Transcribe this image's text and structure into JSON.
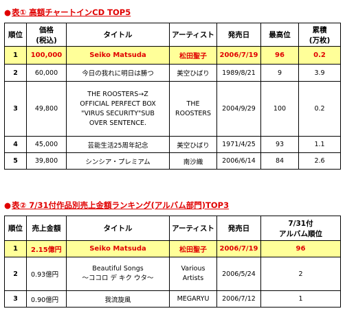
{
  "table1": {
    "title": "表① 高額チャートインCD TOP5",
    "headers": {
      "rank": "順位",
      "price": [
        "価格",
        "(税込)"
      ],
      "title": "タイトル",
      "artist": "アーティスト",
      "release": "発売日",
      "peak": "最高位",
      "total": [
        "累積",
        "(万枚)"
      ]
    },
    "rows": [
      {
        "rank": "1",
        "price": "100,000",
        "title": [
          "Seiko Matsuda"
        ],
        "artist": [
          "松田聖子"
        ],
        "release": "2006/7/19",
        "peak": "96",
        "total": "0.2",
        "highlight": true
      },
      {
        "rank": "2",
        "price": "60,000",
        "title": [
          "今日の我れに明日は勝つ"
        ],
        "artist": [
          "美空ひばり"
        ],
        "release": "1989/8/21",
        "peak": "9",
        "total": "3.9",
        "highlight": false
      },
      {
        "rank": "3",
        "price": "49,800",
        "title": [
          "THE ROOSTERS→Z",
          "OFFICIAL PERFECT BOX",
          "\"VIRUS SECURITY\"SUB",
          "OVER SENTENCE."
        ],
        "artist": [
          "THE",
          "ROOSTERS"
        ],
        "release": "2004/9/29",
        "peak": "100",
        "total": "0.2",
        "highlight": false
      },
      {
        "rank": "4",
        "price": "45,000",
        "title": [
          "芸能生活25周年記念"
        ],
        "artist": [
          "美空ひばり"
        ],
        "release": "1971/4/25",
        "peak": "93",
        "total": "1.1",
        "highlight": false
      },
      {
        "rank": "5",
        "price": "39,800",
        "title": [
          "シンシア・プレミアム"
        ],
        "artist": [
          "南沙織"
        ],
        "release": "2006/6/14",
        "peak": "84",
        "total": "2.6",
        "highlight": false
      }
    ]
  },
  "table2": {
    "title": "表② 7/31付作品別売上金額ランキング(アルバム部門)TOP3",
    "headers": {
      "rank": "順位",
      "sales": "売上金額",
      "title": "タイトル",
      "artist": "アーティスト",
      "release": "発売日",
      "album_rank": [
        "7/31付",
        "アルバム順位"
      ]
    },
    "rows": [
      {
        "rank": "1",
        "sales": "2.15億円",
        "title": [
          "Seiko Matsuda"
        ],
        "artist": [
          "松田聖子"
        ],
        "release": "2006/7/19",
        "album_rank": "96",
        "highlight": true
      },
      {
        "rank": "2",
        "sales": "0.93億円",
        "title": [
          "Beautiful Songs",
          "〜ココロ デ キク ウタ〜"
        ],
        "artist": [
          "Various",
          "Artists"
        ],
        "release": "2006/5/24",
        "album_rank": "2",
        "highlight": false
      },
      {
        "rank": "3",
        "sales": "0.90億円",
        "title": [
          "我流旋風"
        ],
        "artist": [
          "MEGARYU"
        ],
        "release": "2006/7/12",
        "album_rank": "1",
        "highlight": false
      }
    ]
  }
}
